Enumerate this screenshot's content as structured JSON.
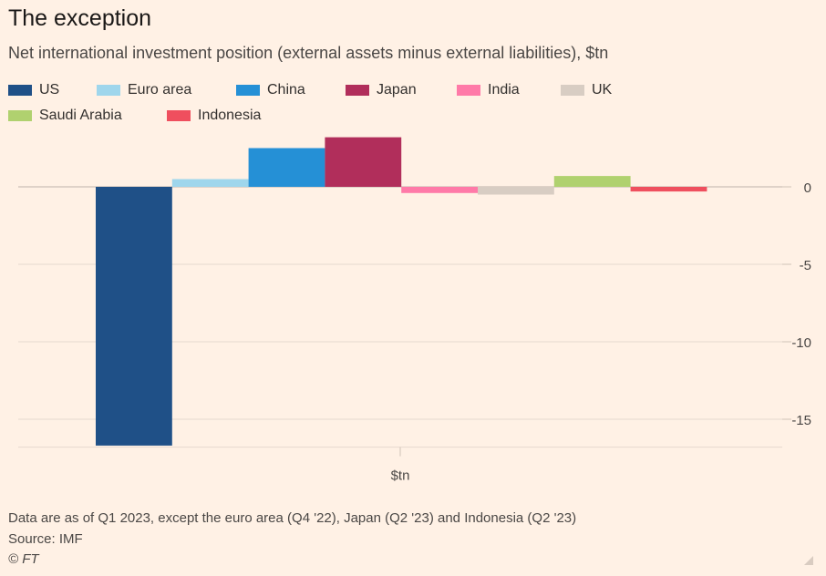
{
  "header": {
    "title": "The exception",
    "subtitle": "Net international investment position (external assets minus external liabilities), $tn"
  },
  "chart_data": {
    "type": "bar",
    "title": "The exception",
    "subtitle": "Net international investment position (external assets minus external liabilities), $tn",
    "xlabel": "$tn",
    "ylabel": "",
    "ylim": [
      -16.8,
      3.3
    ],
    "yticks": [
      0,
      -5,
      -10,
      -15
    ],
    "ytick_labels": [
      "0",
      "-5",
      "-10",
      "-15"
    ],
    "grid": true,
    "legend_position": "top",
    "categories": [
      "US",
      "Euro area",
      "China",
      "Japan",
      "India",
      "UK",
      "Saudi Arabia",
      "Indonesia"
    ],
    "values": [
      -16.7,
      0.5,
      2.5,
      3.2,
      -0.4,
      -0.5,
      0.7,
      -0.3
    ],
    "colors": [
      "#1f5087",
      "#9fd6ec",
      "#2590d6",
      "#b12e5b",
      "#ff7aa8",
      "#d8cdc3",
      "#b0d16f",
      "#ef4f5e"
    ]
  },
  "footer": {
    "note": "Data are as of Q1 2023, except the euro area (Q4 '22), Japan (Q2 '23) and Indonesia (Q2 '23)",
    "source": "Source: IMF",
    "copyright": "© FT"
  }
}
